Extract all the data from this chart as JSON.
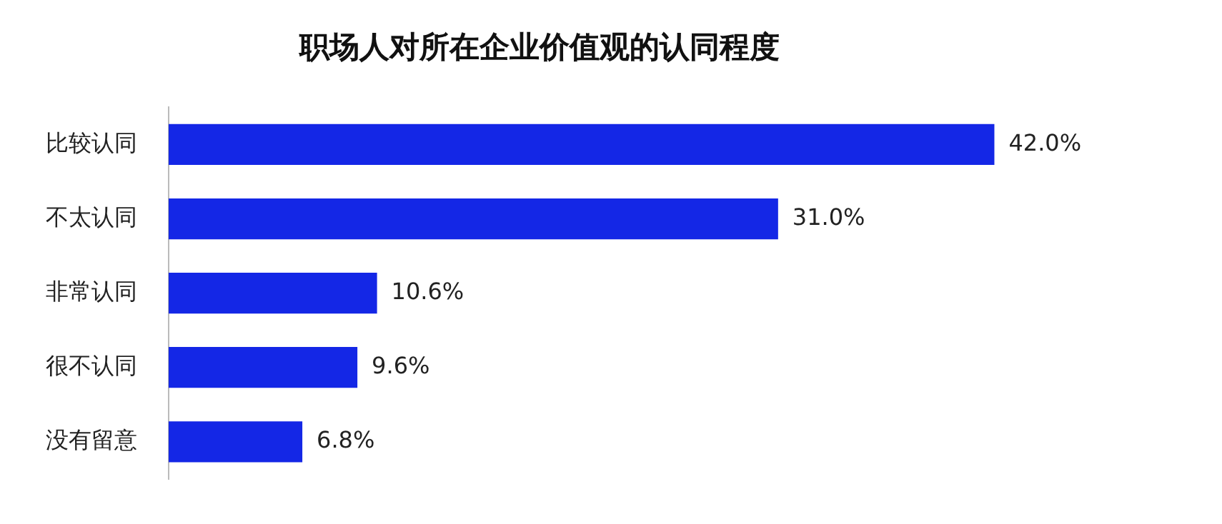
{
  "chart_data": {
    "type": "bar",
    "orientation": "horizontal",
    "title": "职场人对所在企业价值观的认同程度",
    "categories": [
      "比较认同",
      "不太认同",
      "非常认同",
      "很不认同",
      "没有留意"
    ],
    "values": [
      42.0,
      31.0,
      10.6,
      9.6,
      6.8
    ],
    "value_labels": [
      "42.0%",
      "31.0%",
      "10.6%",
      "9.6%",
      "6.8%"
    ],
    "color": "#1427e6",
    "tick_labels": "y",
    "grid": false,
    "legend": false
  }
}
